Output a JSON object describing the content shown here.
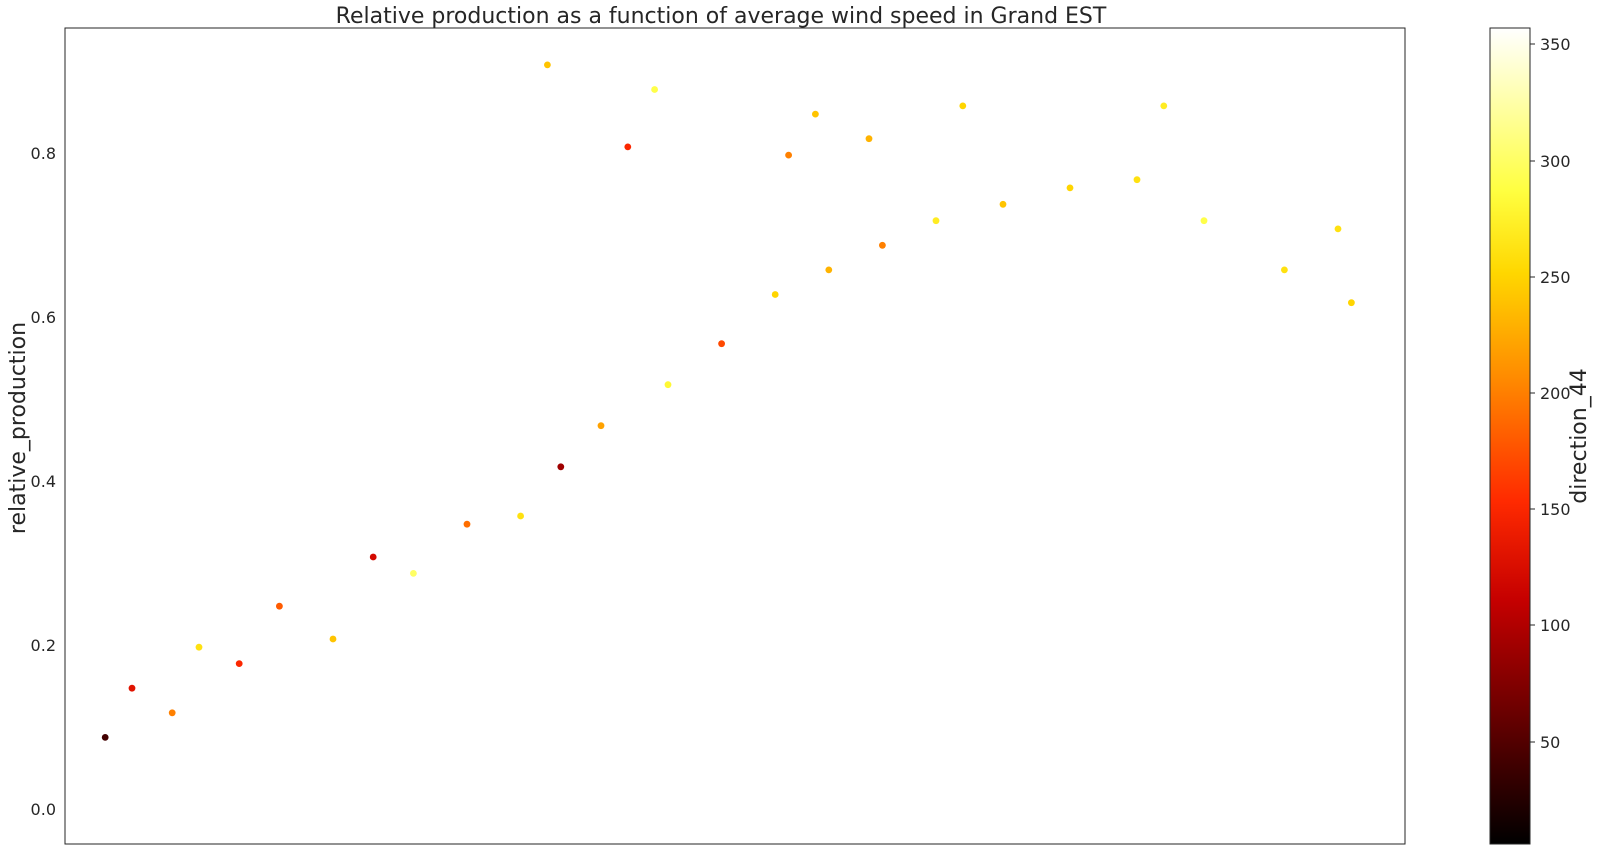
{
  "chart_data": {
    "type": "scatter",
    "title": "Relative production as a function of average wind speed in Grand EST",
    "xlabel": "",
    "ylabel": "relative_production",
    "xlim": [
      0,
      10
    ],
    "ylim": [
      -0.04,
      0.955
    ],
    "yticks": [
      0.0,
      0.2,
      0.4,
      0.6,
      0.8
    ],
    "ytick_labels": [
      "0.0",
      "0.2",
      "0.4",
      "0.6",
      "0.8"
    ],
    "grid": false,
    "colorbar": {
      "label": "direction_44",
      "colormap": "hot",
      "range": [
        5,
        357
      ],
      "ticks": [
        50,
        100,
        150,
        200,
        250,
        300,
        350
      ],
      "tick_labels": [
        "50",
        "100",
        "150",
        "200",
        "250",
        "300",
        "350"
      ]
    },
    "colormap_stops": [
      "#000000",
      "#c60000",
      "#ff2a00",
      "#ff8a00",
      "#ffd700",
      "#ffff40",
      "#ffffff"
    ],
    "series": [
      {
        "x": [
          0.3,
          0.5,
          0.8,
          1.0,
          1.3,
          1.6,
          2.0,
          2.3,
          2.6,
          3.0,
          3.4,
          3.7,
          4.0,
          4.5,
          4.9,
          5.3,
          5.7,
          6.1,
          6.5,
          7.0,
          7.5,
          8.0,
          8.5,
          9.1,
          9.6
        ],
        "y": [
          0.09,
          0.15,
          0.12,
          0.2,
          0.18,
          0.25,
          0.21,
          0.31,
          0.29,
          0.35,
          0.36,
          0.42,
          0.47,
          0.52,
          0.57,
          0.63,
          0.66,
          0.69,
          0.72,
          0.74,
          0.76,
          0.77,
          0.72,
          0.66,
          0.62
        ],
        "c": [
          40,
          130,
          200,
          260,
          150,
          180,
          240,
          120,
          300,
          190,
          260,
          90,
          220,
          280,
          170,
          250,
          230,
          200,
          270,
          240,
          250,
          260,
          290,
          260,
          250
        ]
      },
      {
        "x": [
          3.6,
          4.4,
          6.7,
          5.6,
          4.2,
          5.4,
          6.0,
          8.2,
          9.5
        ],
        "y": [
          0.91,
          0.88,
          0.86,
          0.85,
          0.81,
          0.8,
          0.82,
          0.86,
          0.71
        ],
        "c": [
          240,
          290,
          250,
          240,
          150,
          200,
          230,
          270,
          260
        ]
      }
    ]
  }
}
